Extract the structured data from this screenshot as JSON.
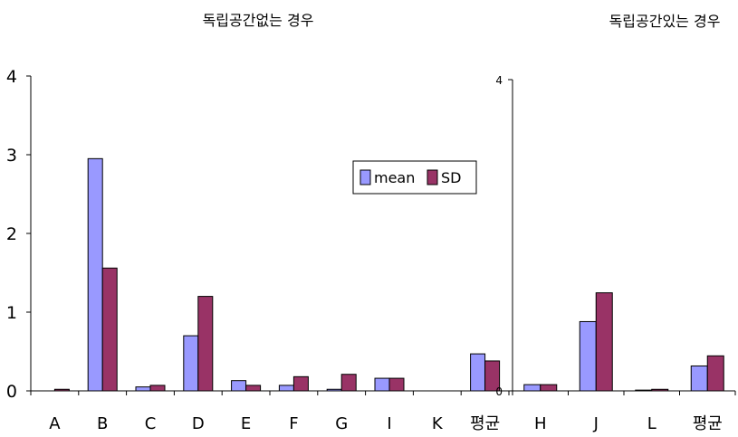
{
  "chart_data": [
    {
      "type": "bar",
      "title": "독립공간없는 경우",
      "categories": [
        "A",
        "B",
        "C",
        "D",
        "E",
        "F",
        "G",
        "I",
        "K",
        "평균"
      ],
      "series": [
        {
          "name": "mean",
          "values": [
            0,
            2.95,
            0.05,
            0.7,
            0.13,
            0.07,
            0.02,
            0.16,
            0,
            0.47
          ]
        },
        {
          "name": "SD",
          "values": [
            0.02,
            1.56,
            0.07,
            1.2,
            0.07,
            0.18,
            0.21,
            0.16,
            0,
            0.38
          ]
        }
      ],
      "y_ticks": [
        "0",
        "1",
        "2",
        "3",
        "4"
      ],
      "ylim": [
        0,
        4
      ],
      "legend": "inside-right",
      "grid": false
    },
    {
      "type": "bar",
      "title": "독립공간있는 경우",
      "categories": [
        "H",
        "J",
        "L",
        "평균"
      ],
      "series": [
        {
          "name": "mean",
          "values": [
            0.08,
            0.89,
            0.01,
            0.32
          ]
        },
        {
          "name": "SD",
          "values": [
            0.08,
            1.26,
            0.02,
            0.45
          ]
        }
      ],
      "y_ticks": [
        "0",
        "4"
      ],
      "ylim": [
        0,
        4
      ],
      "grid": false
    }
  ],
  "colors": {
    "mean": "#9999ff",
    "SD": "#993366",
    "axis": "#000000"
  }
}
